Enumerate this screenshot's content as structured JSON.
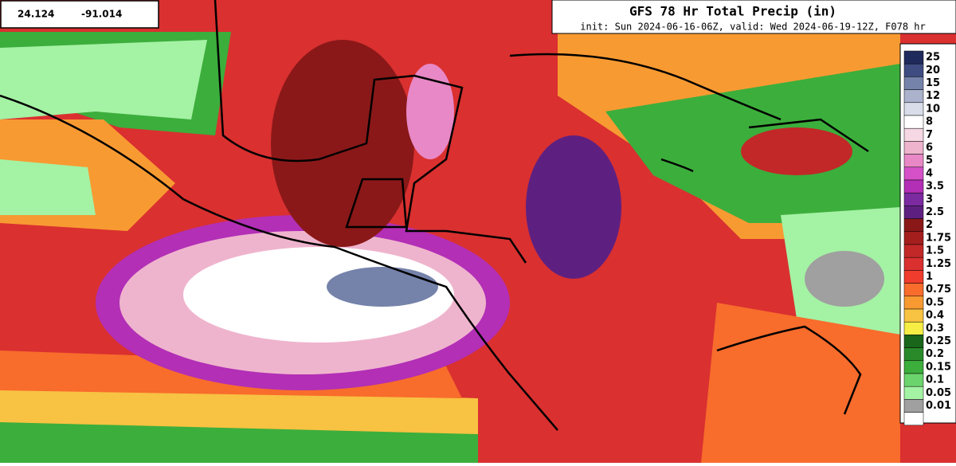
{
  "coordinates": {
    "lat": "24.124",
    "lon": "-91.014"
  },
  "header": {
    "title": "GFS 78 Hr Total Precip (in)",
    "subtitle": "init: Sun 2024-06-16-06Z, valid: Wed 2024-06-19-12Z, F078 hr"
  },
  "legend": {
    "items": [
      {
        "label": "25",
        "color": "#1f2a5c"
      },
      {
        "label": "20",
        "color": "#3e4c82"
      },
      {
        "label": "15",
        "color": "#7582aa"
      },
      {
        "label": "12",
        "color": "#aab2cc"
      },
      {
        "label": "10",
        "color": "#d9dde9"
      },
      {
        "label": "8",
        "color": "#ffffff"
      },
      {
        "label": "7",
        "color": "#f5d8e3"
      },
      {
        "label": "6",
        "color": "#efb4cd"
      },
      {
        "label": "5",
        "color": "#e888c6"
      },
      {
        "label": "4",
        "color": "#d650c8"
      },
      {
        "label": "3.5",
        "color": "#b22fb6"
      },
      {
        "label": "3",
        "color": "#7b2aa0"
      },
      {
        "label": "2.5",
        "color": "#5e2080"
      },
      {
        "label": "2",
        "color": "#8a1818"
      },
      {
        "label": "1.75",
        "color": "#a41e1e"
      },
      {
        "label": "1.5",
        "color": "#c22828"
      },
      {
        "label": "1.25",
        "color": "#da3030"
      },
      {
        "label": "1",
        "color": "#f03c2c"
      },
      {
        "label": "0.75",
        "color": "#f86c2c"
      },
      {
        "label": "0.5",
        "color": "#f89a32"
      },
      {
        "label": "0.4",
        "color": "#f8c242"
      },
      {
        "label": "0.3",
        "color": "#f6ee44"
      },
      {
        "label": "0.25",
        "color": "#1a661a"
      },
      {
        "label": "0.2",
        "color": "#2a8a2a"
      },
      {
        "label": "0.15",
        "color": "#3cae3c"
      },
      {
        "label": "0.1",
        "color": "#6cd46c"
      },
      {
        "label": "0.05",
        "color": "#a4f2a4"
      },
      {
        "label": "0.01",
        "color": "#a0a0a0"
      }
    ]
  }
}
